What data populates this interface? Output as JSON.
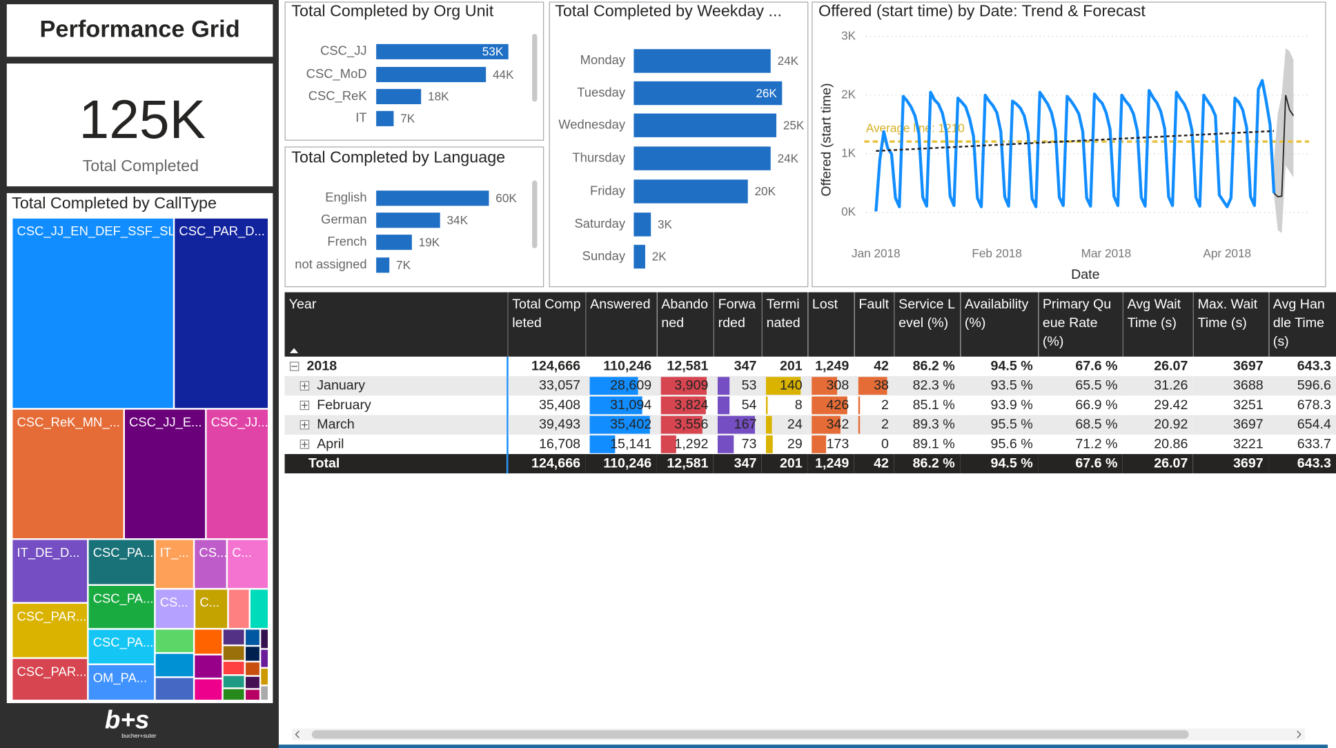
{
  "header": {
    "title": "Performance Grid"
  },
  "kpi": {
    "value": "125K",
    "label": "Total Completed"
  },
  "logo": {
    "mark": "b+s",
    "name": "bucher+suter"
  },
  "chart_data": [
    {
      "type": "bar",
      "title": "Total Completed by Org Unit",
      "categories": [
        "CSC_JJ",
        "CSC_MoD",
        "CSC_ReK",
        "IT"
      ],
      "values": [
        53000,
        44000,
        18000,
        7000
      ],
      "value_labels": [
        "53K",
        "44K",
        "18K",
        "7K"
      ],
      "color": "#1F6FC5"
    },
    {
      "type": "bar",
      "title": "Total Completed by Language",
      "categories": [
        "English",
        "German",
        "French",
        "not assigned"
      ],
      "values": [
        60000,
        34000,
        19000,
        7000
      ],
      "value_labels": [
        "60K",
        "34K",
        "19K",
        "7K"
      ],
      "color": "#1F6FC5"
    },
    {
      "type": "bar",
      "title": "Total Completed by Weekday ...",
      "categories": [
        "Monday",
        "Tuesday",
        "Wednesday",
        "Thursday",
        "Friday",
        "Saturday",
        "Sunday"
      ],
      "values": [
        24000,
        26000,
        25000,
        24000,
        20000,
        3000,
        2000
      ],
      "value_labels": [
        "24K",
        "26K",
        "25K",
        "24K",
        "20K",
        "3K",
        "2K"
      ],
      "color": "#1F6FC5"
    },
    {
      "type": "line",
      "title": "Offered (start time) by Date: Trend & Forecast",
      "y_label": "Offered (start time)",
      "x_label": "Date",
      "xlim": [
        "2017-12-29",
        "2018-04-22"
      ],
      "xticks": [
        {
          "value": "2018-01-01",
          "label": "Jan 2018"
        },
        {
          "value": "2018-02-01",
          "label": "Feb 2018"
        },
        {
          "value": "2018-03-01",
          "label": "Mar 2018"
        },
        {
          "value": "2018-04-01",
          "label": "Apr 2018"
        }
      ],
      "ylim": [
        0,
        3000
      ],
      "yticks": [
        {
          "value": 0,
          "label": "0K"
        },
        {
          "value": 1000,
          "label": "1K"
        },
        {
          "value": 2000,
          "label": "2K"
        },
        {
          "value": 3000,
          "label": "3K"
        }
      ],
      "grid": true,
      "series": [
        {
          "color": "#118DFF",
          "x": [
            "2018-01-01",
            "2018-01-02",
            "2018-01-03",
            "2018-01-04",
            "2018-01-05",
            "2018-01-06",
            "2018-01-07",
            "2018-01-08",
            "2018-01-09",
            "2018-01-10",
            "2018-01-11",
            "2018-01-12",
            "2018-01-13",
            "2018-01-14",
            "2018-01-15",
            "2018-01-16",
            "2018-01-17",
            "2018-01-18",
            "2018-01-19",
            "2018-01-20",
            "2018-01-21",
            "2018-01-22",
            "2018-01-23",
            "2018-01-24",
            "2018-01-25",
            "2018-01-26",
            "2018-01-27",
            "2018-01-28",
            "2018-01-29",
            "2018-01-30",
            "2018-01-31",
            "2018-02-01",
            "2018-02-02",
            "2018-02-03",
            "2018-02-04",
            "2018-02-05",
            "2018-02-06",
            "2018-02-07",
            "2018-02-08",
            "2018-02-09",
            "2018-02-10",
            "2018-02-11",
            "2018-02-12",
            "2018-02-13",
            "2018-02-14",
            "2018-02-15",
            "2018-02-16",
            "2018-02-17",
            "2018-02-18",
            "2018-02-19",
            "2018-02-20",
            "2018-02-21",
            "2018-02-22",
            "2018-02-23",
            "2018-02-24",
            "2018-02-25",
            "2018-02-26",
            "2018-02-27",
            "2018-02-28",
            "2018-03-01",
            "2018-03-02",
            "2018-03-03",
            "2018-03-04",
            "2018-03-05",
            "2018-03-06",
            "2018-03-07",
            "2018-03-08",
            "2018-03-09",
            "2018-03-10",
            "2018-03-11",
            "2018-03-12",
            "2018-03-13",
            "2018-03-14",
            "2018-03-15",
            "2018-03-16",
            "2018-03-17",
            "2018-03-18",
            "2018-03-19",
            "2018-03-20",
            "2018-03-21",
            "2018-03-22",
            "2018-03-23",
            "2018-03-24",
            "2018-03-25",
            "2018-03-26",
            "2018-03-27",
            "2018-03-28",
            "2018-03-29",
            "2018-03-30",
            "2018-03-31",
            "2018-04-01",
            "2018-04-02",
            "2018-04-03",
            "2018-04-04",
            "2018-04-05",
            "2018-04-06",
            "2018-04-07",
            "2018-04-08",
            "2018-04-09",
            "2018-04-10",
            "2018-04-11",
            "2018-04-12",
            "2018-04-13"
          ],
          "values": [
            20,
            900,
            1380,
            1100,
            1000,
            250,
            100,
            1980,
            1900,
            1800,
            1650,
            1350,
            260,
            110,
            2050,
            1920,
            1850,
            1700,
            1400,
            280,
            120,
            1950,
            1880,
            1800,
            1600,
            1300,
            250,
            100,
            2000,
            1900,
            1820,
            1700,
            1380,
            270,
            110,
            1900,
            1850,
            1780,
            1650,
            1350,
            240,
            100,
            2050,
            1950,
            1850,
            1700,
            1400,
            260,
            120,
            1980,
            1900,
            1800,
            1680,
            1380,
            250,
            110,
            2020,
            1930,
            1860,
            1700,
            1420,
            280,
            120,
            2000,
            1900,
            1820,
            1680,
            1390,
            260,
            110,
            2080,
            1960,
            1870,
            1720,
            1430,
            270,
            120,
            2050,
            1940,
            1850,
            1700,
            1400,
            260,
            110,
            2000,
            1900,
            1800,
            1650,
            300,
            200,
            100,
            250,
            1950,
            1880,
            1750,
            1450,
            270,
            120,
            2100,
            2250,
            1900,
            1500,
            330
          ]
        }
      ],
      "trend": {
        "color": "#252423",
        "x": [
          "2018-01-01",
          "2018-04-13"
        ],
        "values": [
          1050,
          1390
        ]
      },
      "average": {
        "value": 1210,
        "label": "Average line: 1210",
        "color": "#E8C547"
      },
      "forecast": {
        "color": "#252423",
        "band_color": "#C8C8C8",
        "x": [
          "2018-04-13",
          "2018-04-14",
          "2018-04-15",
          "2018-04-16",
          "2018-04-17",
          "2018-04-18"
        ],
        "values": [
          330,
          270,
          280,
          2000,
          1750,
          1650
        ],
        "upper": [
          900,
          1700,
          2000,
          2800,
          2750,
          2600
        ],
        "lower": [
          300,
          -300,
          -350,
          800,
          700,
          600
        ]
      }
    },
    {
      "type": "treemap",
      "title": "Total Completed by CallType",
      "labels": [
        "CSC_JJ_EN_DEF_SSF_SL",
        "CSC_PAR_D...",
        "CSC_ReK_MN_...",
        "CSC_JJ_E...",
        "CSC_JJ...",
        "IT_DE_D...",
        "CSC_PAR...",
        "CSC_PAR...",
        "CSC_PA...",
        "CSC_PA...",
        "CSC_PA...",
        "OM_PA...",
        "IT_...",
        "CS...",
        "C...",
        "CS...",
        "C...",
        null,
        null,
        null,
        null,
        null,
        null,
        null,
        null,
        null,
        null,
        null,
        null,
        null,
        null,
        null,
        null,
        null,
        null,
        null,
        null,
        null,
        null
      ],
      "values": [
        29450,
        17200,
        13900,
        10140,
        7770,
        4610,
        3990,
        3070,
        2920,
        2800,
        2250,
        2310,
        1850,
        1560,
        1970,
        1510,
        1270,
        820,
        720,
        900,
        900,
        870,
        700,
        650,
        600,
        350,
        330,
        300,
        280,
        260,
        250,
        230,
        210,
        190,
        170,
        160,
        150,
        140,
        120
      ],
      "colors": [
        "#118DFF",
        "#12239E",
        "#E66C37",
        "#6B007B",
        "#E044A7",
        "#744EC2",
        "#D9B300",
        "#D64550",
        "#197278",
        "#1AAB40",
        "#15C6F4",
        "#4092FF",
        "#FFA058",
        "#BE5DC9",
        "#F472D0",
        "#B5A1FF",
        "#C4A200",
        "#FF8080",
        "#00DBBC",
        "#5BD667",
        "#0091D5",
        "#4668C5",
        "#FF6300",
        "#99008A",
        "#EC008C",
        "#533285",
        "#99700A",
        "#FF4141",
        "#1F9A85",
        "#25891C",
        "#0057A2",
        "#002050",
        "#C94F0F",
        "#450F54",
        "#B60064",
        "#34124F",
        "#6A1B9A",
        "#CC9900",
        "#AAAAAA"
      ]
    }
  ],
  "table": {
    "columns": [
      "Year",
      "Total Completed",
      "Answered",
      "Abandoned",
      "Forwarded",
      "Terminated",
      "Lost",
      "Fault",
      "Service Level (%)",
      "Availability (%)",
      "Primary Queue Rate (%)",
      "Avg Wait Time (s)",
      "Max. Wait Time (s)",
      "Avg Handle Time (s)"
    ],
    "bar_colors": {
      "2": "#118DFF",
      "3": "#D64550",
      "4": "#744EC2",
      "5": "#D9B300",
      "6": "#E66C37",
      "7": "#E66C37"
    },
    "rows": [
      [
        "2018",
        "124,666",
        "110,246",
        "12,581",
        "347",
        "201",
        "1,249",
        "42",
        "86.2 %",
        "94.5 %",
        "67.6 %",
        "26.07",
        "3697",
        "643.3"
      ],
      [
        "January",
        "33,057",
        {
          "value": 28609,
          "label": "28,609"
        },
        {
          "value": 3909,
          "label": "3,909"
        },
        53,
        140,
        308,
        38,
        "82.3 %",
        "93.5 %",
        "65.5 %",
        "31.26",
        "3688",
        "596.6"
      ],
      [
        "February",
        "35,408",
        {
          "value": 31094,
          "label": "31,094"
        },
        {
          "value": 3824,
          "label": "3,824"
        },
        54,
        8,
        426,
        2,
        "85.1 %",
        "93.9 %",
        "66.9 %",
        "29.42",
        "3251",
        "678.3"
      ],
      [
        "March",
        "39,493",
        {
          "value": 35402,
          "label": "35,402"
        },
        {
          "value": 3556,
          "label": "3,556"
        },
        167,
        24,
        342,
        2,
        "89.3 %",
        "95.5 %",
        "68.5 %",
        "20.92",
        "3697",
        "654.4"
      ],
      [
        "April",
        "16,708",
        {
          "value": 15141,
          "label": "15,141"
        },
        {
          "value": 1292,
          "label": "1,292"
        },
        73,
        29,
        173,
        0,
        "89.1 %",
        "95.6 %",
        "71.2 %",
        "20.86",
        "3221",
        "633.7"
      ],
      [
        "Total",
        "124,666",
        "110,246",
        "12,581",
        "347",
        "201",
        "1,249",
        "42",
        "86.2 %",
        "94.5 %",
        "67.6 %",
        "26.07",
        "3697",
        "643.3"
      ]
    ]
  }
}
